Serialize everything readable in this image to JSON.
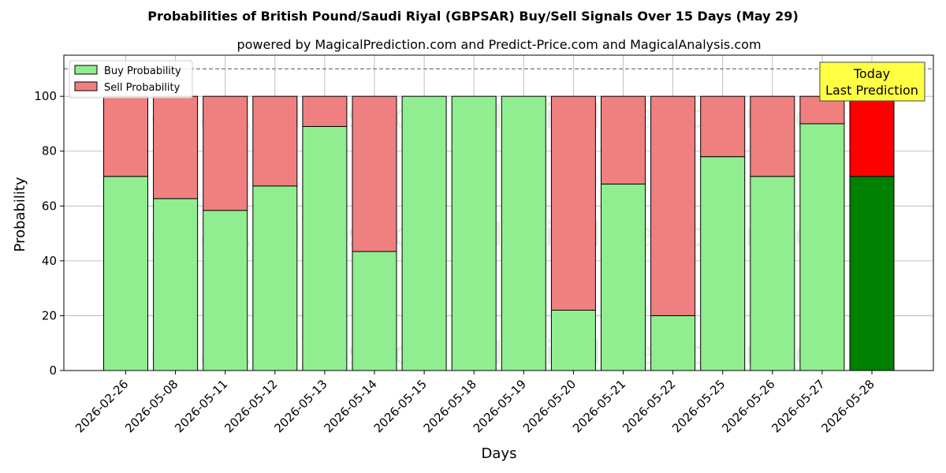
{
  "chart_data": {
    "type": "bar",
    "stacked": true,
    "title": "Probabilities of British Pound/Saudi Riyal (GBPSAR) Buy/Sell Signals Over 15 Days (May 29)",
    "subtitle": "powered by MagicalPrediction.com and Predict-Price.com and MagicalAnalysis.com",
    "xlabel": "Days",
    "ylabel": "Probability",
    "ylim": [
      0,
      115
    ],
    "yticks": [
      0,
      20,
      40,
      60,
      80,
      100
    ],
    "grid": true,
    "reference_line": 110,
    "legend": {
      "placement": "top-left",
      "entries": [
        "Buy Probability",
        "Sell Probability"
      ]
    },
    "categories": [
      "2026-02-26",
      "2026-05-08",
      "2026-05-11",
      "2026-05-12",
      "2026-05-13",
      "2026-05-14",
      "2026-05-15",
      "2026-05-18",
      "2026-05-19",
      "2026-05-20",
      "2026-05-21",
      "2026-05-22",
      "2026-05-25",
      "2026-05-26",
      "2026-05-27",
      "2026-05-28"
    ],
    "series": [
      {
        "name": "Buy Probability",
        "values": [
          70.8,
          62.7,
          58.4,
          67.3,
          89,
          43.4,
          100,
          100,
          100,
          22,
          68,
          20,
          78,
          70.8,
          90,
          70.8
        ]
      },
      {
        "name": "Sell Probability",
        "values": [
          29.2,
          37.3,
          41.6,
          32.7,
          11,
          56.6,
          0,
          0,
          0,
          78,
          32,
          80,
          22,
          29.2,
          10,
          29.2
        ]
      }
    ],
    "annotation": {
      "lines": [
        "Today",
        "Last Prediction"
      ],
      "background": "#ffff44"
    },
    "watermarks": [
      "MagicalAnalysis.com",
      "MagicalPrediction.com"
    ]
  },
  "colors": {
    "buy": "#90ee90",
    "sell": "#f08080",
    "buy_highlight": "#008000",
    "sell_highlight": "#ff0000",
    "grid": "#b0b0b0",
    "edge": "#000000"
  }
}
